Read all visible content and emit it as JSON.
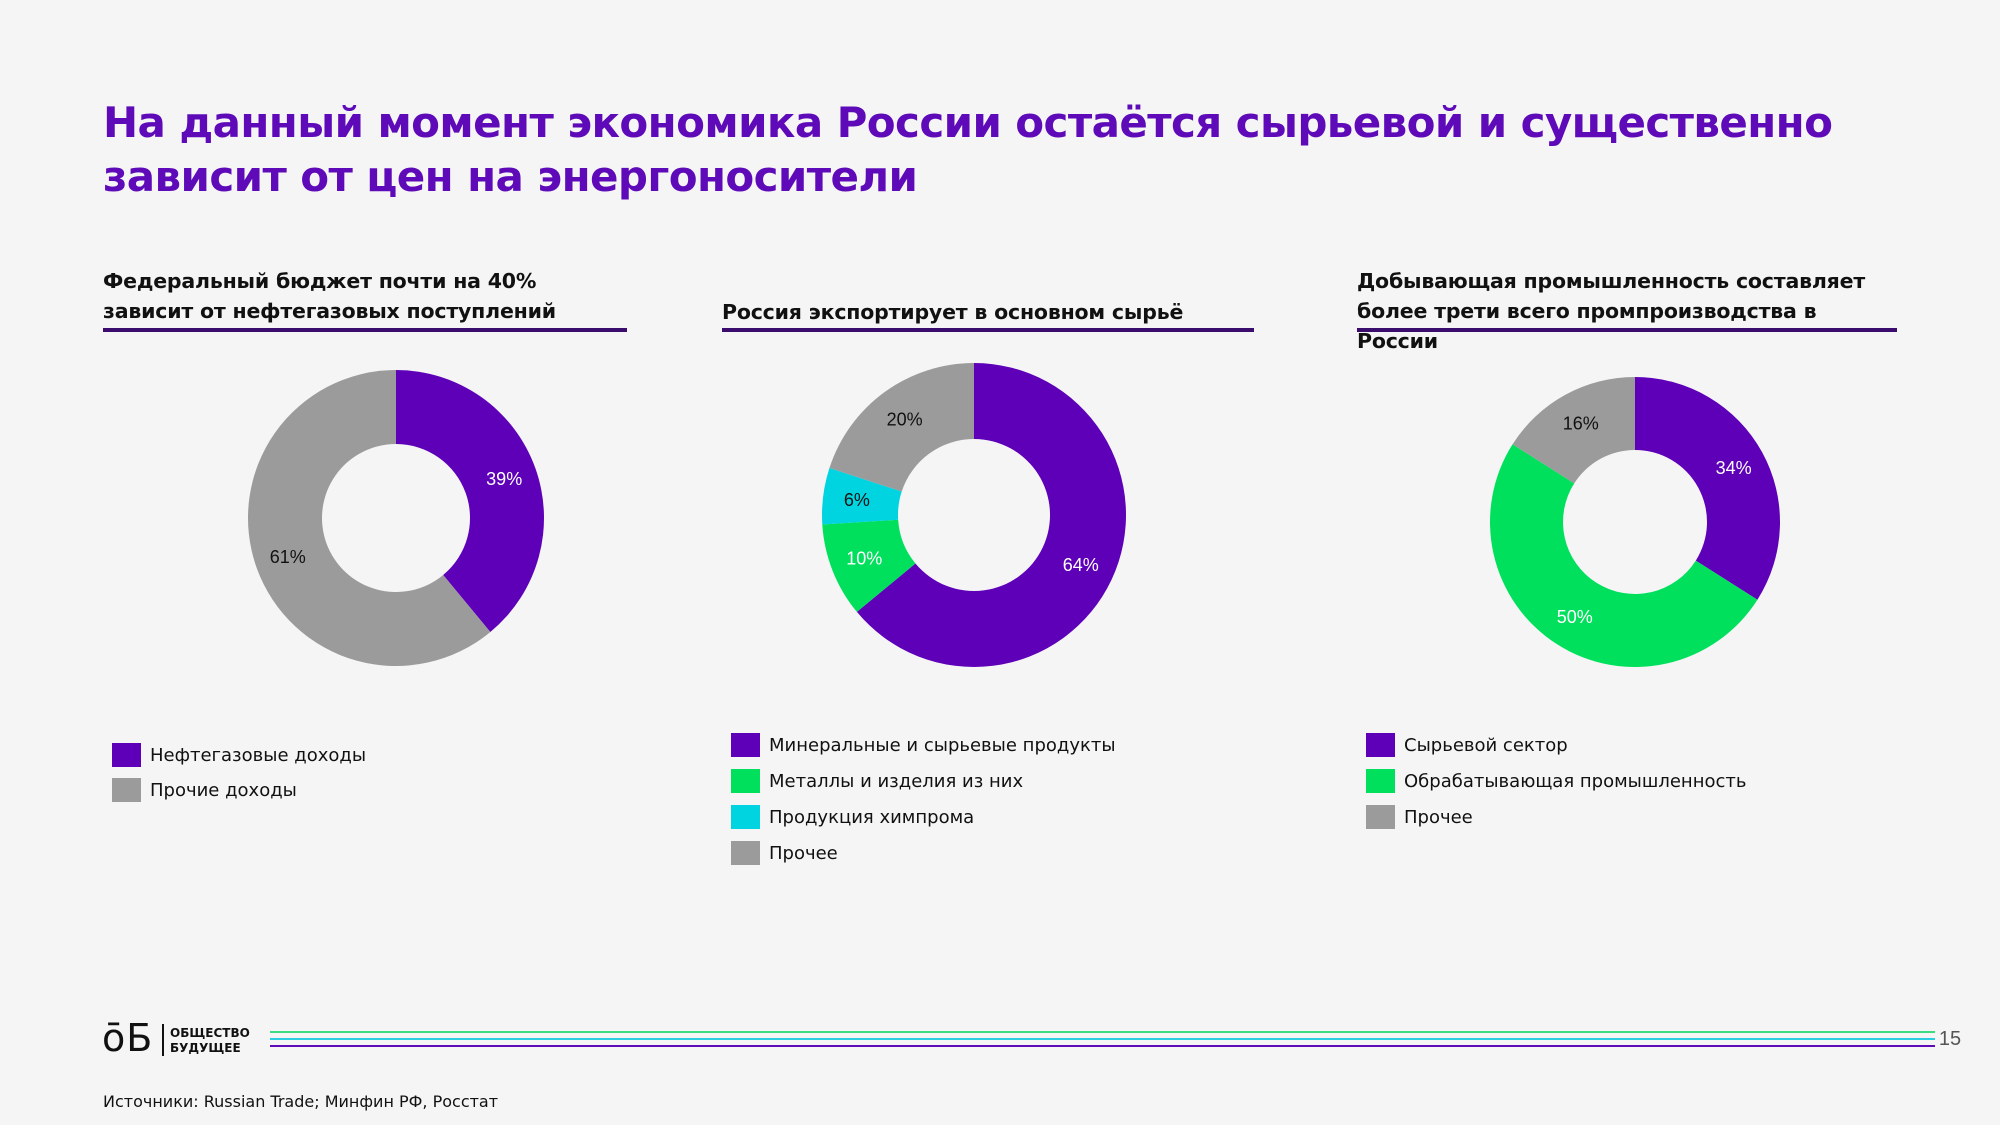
{
  "slide": {
    "title": "На данный момент экономика России остаётся сырьевой и существенно зависит от цен на энергоносители",
    "page_number": "15",
    "sources": "Источники: Russian Trade; Минфин РФ, Росстат",
    "logo": {
      "mark": "ōБ",
      "line1": "ОБЩЕСТВО",
      "line2": "БУДУЩЕЕ"
    },
    "colors": {
      "title": "#5e0ab8",
      "rule": "#3a0c6e",
      "footer_lines": [
        "#3ddc84",
        "#2bcde0",
        "#5e0ab8"
      ]
    }
  },
  "chart_data": [
    {
      "type": "pie",
      "donut": true,
      "title": "Федеральный бюджет почти на 40% зависит от нефтегазовых поступлений",
      "categories": [
        "Нефтегазовые доходы",
        "Прочие доходы"
      ],
      "values": [
        39,
        61
      ],
      "labels": [
        "39%",
        "61%"
      ],
      "colors": [
        "#5e00b8",
        "#9b9b9b"
      ],
      "label_colors": [
        "#ffffff",
        "#111111"
      ],
      "legend": "bottom-left"
    },
    {
      "type": "pie",
      "donut": true,
      "title": "Россия экспортирует в основном сырьё",
      "categories": [
        "Минеральные и сырьевые продукты",
        "Металлы и изделия из них",
        "Продукция химпрома",
        "Прочее"
      ],
      "values": [
        64,
        10,
        6,
        20
      ],
      "labels": [
        "64%",
        "10%",
        "6%",
        "20%"
      ],
      "colors": [
        "#5e00b8",
        "#00e05c",
        "#00d4e0",
        "#9b9b9b"
      ],
      "label_colors": [
        "#ffffff",
        "#ffffff",
        "#111111",
        "#111111"
      ],
      "legend": "bottom-left"
    },
    {
      "type": "pie",
      "donut": true,
      "title": "Добывающая промышленность составляет более трети всего промпроизводства в России",
      "categories": [
        "Сырьевой сектор",
        "Обрабатывающая промышленность",
        "Прочее"
      ],
      "values": [
        34,
        50,
        16
      ],
      "labels": [
        "34%",
        "50%",
        "16%"
      ],
      "colors": [
        "#5e00b8",
        "#00e05c",
        "#9b9b9b"
      ],
      "label_colors": [
        "#ffffff",
        "#ffffff",
        "#111111"
      ],
      "legend": "bottom-left"
    }
  ]
}
